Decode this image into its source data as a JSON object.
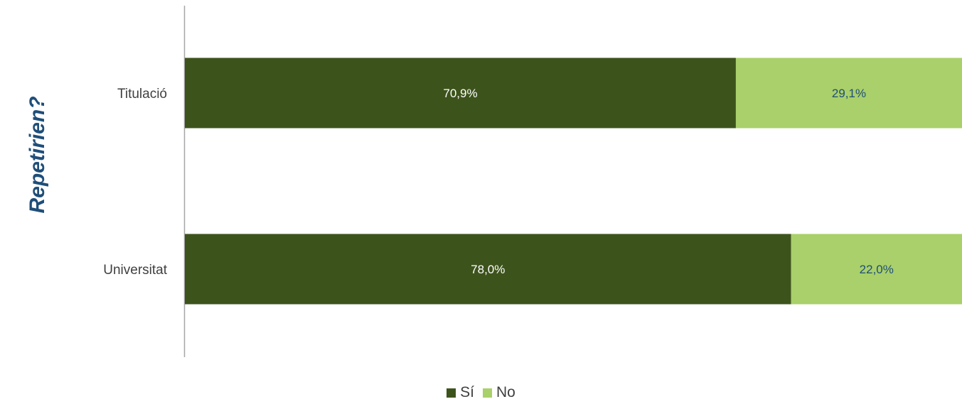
{
  "chart_data": {
    "type": "bar",
    "orientation": "horizontal",
    "stacked": true,
    "ylabel": "Repetirien?",
    "categories": [
      "Titulació",
      "Universitat"
    ],
    "series": [
      {
        "name": "Sí",
        "values": [
          70.9,
          78.0
        ],
        "labels": [
          "70,9%",
          "78,0%"
        ],
        "color": "#3d531c",
        "label_color": "#ffffff"
      },
      {
        "name": "No",
        "values": [
          29.1,
          22.0
        ],
        "labels": [
          "29,1%",
          "22,0%"
        ],
        "color": "#a9d06a",
        "label_color": "#1f4e79"
      }
    ],
    "xlim": [
      0,
      100
    ],
    "grid": false,
    "legend_position": "bottom"
  }
}
